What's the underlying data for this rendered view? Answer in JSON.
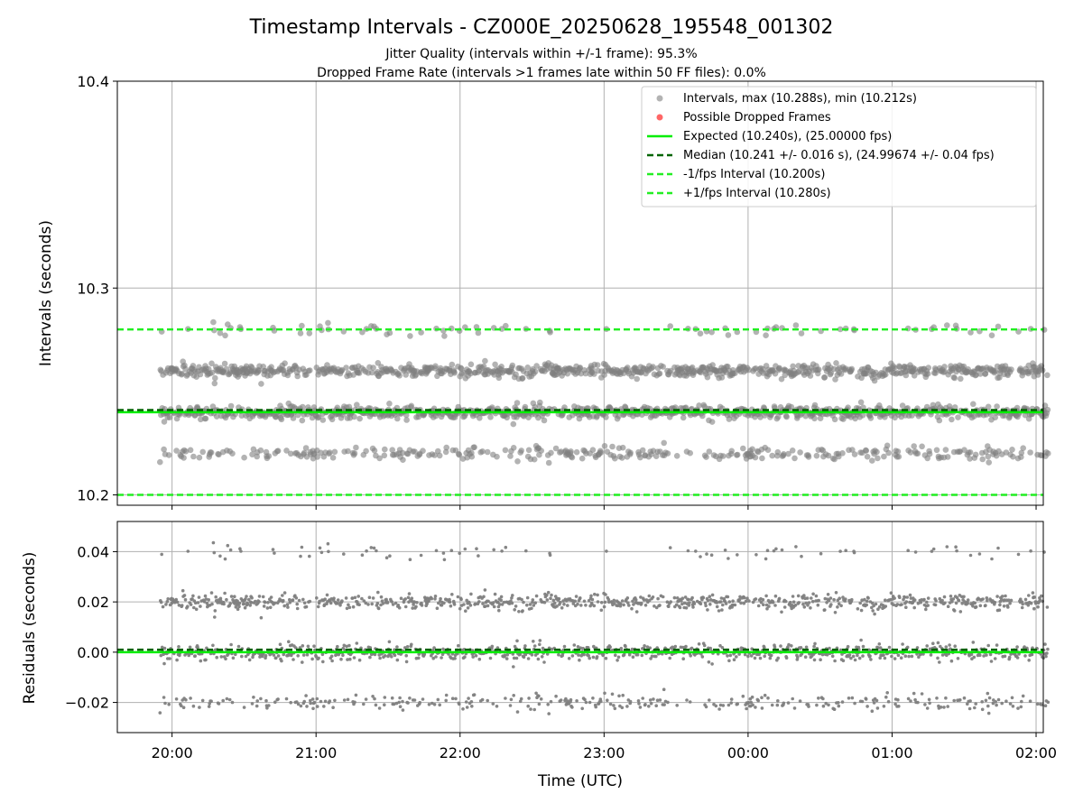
{
  "figure": {
    "title": "Timestamp Intervals - CZ000E_20250628_195548_001302",
    "subtitle_1": "Jitter Quality (intervals within +/-1 frame): 95.3%",
    "subtitle_2": "Dropped Frame Rate (intervals >1 frames late within 50 FF files): 0.0%"
  },
  "colors": {
    "points": "#808080",
    "dropped": "#ff6666",
    "expected": "#00ee00",
    "median": "#006400",
    "bounds": "#22ee22",
    "grid": "#b0b0b0"
  },
  "chart_data": [
    {
      "type": "scatter",
      "ylabel": "Intervals (seconds)",
      "ylim": [
        10.195,
        10.4
      ],
      "yticks": [
        10.2,
        10.3,
        10.4
      ],
      "ytick_labels": [
        "10.2",
        "10.3",
        "10.4"
      ],
      "xlim_hours": [
        19.62,
        26.05
      ],
      "xticks_hours": [
        20,
        21,
        22,
        23,
        24,
        25,
        26
      ],
      "grid": true,
      "legend_position": "top-right",
      "legend": [
        "Intervals, max (10.288s), min (10.212s)",
        "Possible Dropped Frames",
        "Expected (10.240s), (25.00000 fps)",
        "Median (10.241 +/- 0.016 s), (24.99674 +/- 0.04 fps)",
        "-1/fps Interval (10.200s)",
        "+1/fps Interval (10.280s)"
      ],
      "lines": {
        "expected": 10.24,
        "median": 10.241,
        "minus_one_frame": 10.2,
        "plus_one_frame": 10.28
      },
      "series": [
        {
          "name": "Intervals, max (10.288s), min (10.212s)",
          "start_time": "19:55",
          "end_time": "02:05",
          "levels": [
            10.22,
            10.24,
            10.26,
            10.28
          ],
          "level_weights": [
            0.16,
            0.41,
            0.39,
            0.04
          ],
          "jitter": 0.0015,
          "min": 10.212,
          "max": 10.288
        },
        {
          "name": "Possible Dropped Frames",
          "values": []
        }
      ]
    },
    {
      "type": "scatter",
      "xlabel": "Time (UTC)",
      "ylabel": "Residuals (seconds)",
      "ylim": [
        -0.032,
        0.052
      ],
      "yticks": [
        -0.02,
        0.0,
        0.02,
        0.04
      ],
      "ytick_labels": [
        "−0.02",
        "0.00",
        "0.02",
        "0.04"
      ],
      "xlim_hours": [
        19.62,
        26.05
      ],
      "xticks_hours": [
        20,
        21,
        22,
        23,
        24,
        25,
        26
      ],
      "xtick_labels": [
        "20:00",
        "21:00",
        "22:00",
        "23:00",
        "00:00",
        "01:00",
        "02:00"
      ],
      "grid": true,
      "lines": {
        "zero": 0.0,
        "median_offset": 0.001
      },
      "series": [
        {
          "name": "Residuals",
          "start_time": "19:55",
          "end_time": "02:05",
          "levels": [
            -0.02,
            0.0,
            0.02,
            0.04
          ],
          "level_weights": [
            0.16,
            0.41,
            0.39,
            0.04
          ],
          "jitter": 0.0015
        }
      ]
    }
  ]
}
